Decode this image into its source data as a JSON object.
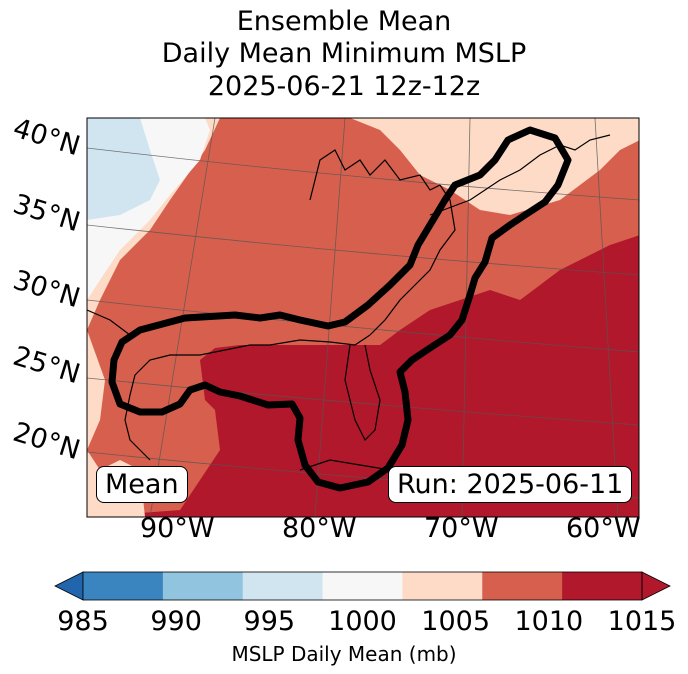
{
  "chart_data": {
    "type": "heatmap",
    "title_lines": [
      "Ensemble Mean",
      "Daily Mean Minimum MSLP",
      "2025-06-21 12z-12z"
    ],
    "latitude_labels": [
      "40°N",
      "35°N",
      "30°N",
      "25°N",
      "20°N"
    ],
    "longitude_labels": [
      "90°W",
      "80°W",
      "70°W",
      "60°W"
    ],
    "left_box_text": "Mean",
    "right_box_text": "Run: 2025-06-11",
    "colorbar": {
      "boundaries": [
        985,
        990,
        995,
        1000,
        1005,
        1010,
        1015
      ],
      "tick_labels": [
        "985",
        "990",
        "995",
        "1000",
        "1005",
        "1010",
        "1015"
      ],
      "colors": [
        "#3a84c0",
        "#90c4df",
        "#d1e5f0",
        "#f7f7f7",
        "#fddbc7",
        "#d6604d",
        "#b2182b"
      ],
      "under_color": "#2166ac",
      "over_color": "#b2182b",
      "label": "MSLP Daily Mean (mb)",
      "extend": "both"
    },
    "contour": {
      "description": "Thick black contour enclosing the Gulf of Mexico and US East Coast region",
      "color": "#000000"
    }
  }
}
